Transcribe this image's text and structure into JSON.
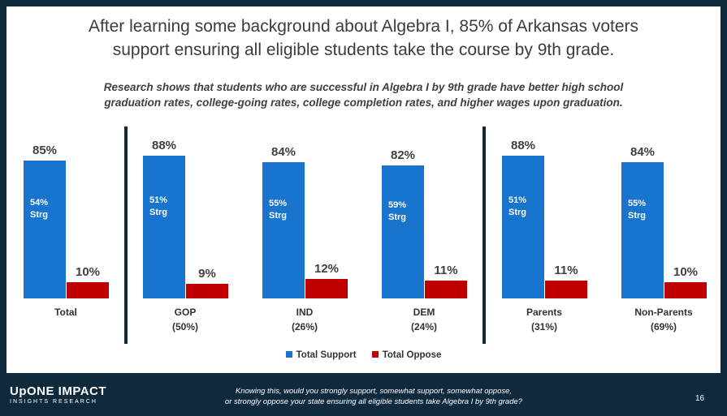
{
  "slide": {
    "title_line1": "After learning some background about Algebra I, 85% of Arkansas voters",
    "title_line2": "support ensuring all eligible students take the course by 9th grade.",
    "subtitle_line1": "Research shows that students who are successful in Algebra I by 9th grade have better high school",
    "subtitle_line2": "graduation rates, college-going rates, college completion rates, and higher wages upon graduation."
  },
  "chart_data": {
    "type": "bar",
    "categories": [
      "Total",
      "GOP",
      "IND",
      "DEM",
      "Parents",
      "Non-Parents"
    ],
    "category_sublabels": [
      "",
      "(50%)",
      "(26%)",
      "(24%)",
      "(31%)",
      "(69%)"
    ],
    "series": [
      {
        "name": "Total Support",
        "values": [
          85,
          88,
          84,
          82,
          88,
          84
        ],
        "labels": [
          "85%",
          "88%",
          "84%",
          "82%",
          "88%",
          "84%"
        ]
      },
      {
        "name": "Total Oppose",
        "values": [
          10,
          9,
          12,
          11,
          11,
          10
        ],
        "labels": [
          "10%",
          "9%",
          "12%",
          "11%",
          "11%",
          "10%"
        ]
      }
    ],
    "strong_support_labels": [
      "54%",
      "51%",
      "55%",
      "59%",
      "51%",
      "55%"
    ],
    "strong_text": "Strg",
    "ylim": [
      0,
      100
    ],
    "colors": {
      "support": "#1874cd",
      "oppose": "#c00000"
    },
    "legend_position": "bottom-center"
  },
  "legend": {
    "support_label": "Total Support",
    "oppose_label": "Total Oppose"
  },
  "footer": {
    "logo_main": "UpONE IMPACT",
    "logo_sub": "INSIGHTS RESEARCH",
    "question_line1": "Knowing this, would you strongly support, somewhat support, somewhat oppose,",
    "question_line2": "or strongly oppose your state ensuring all eligible students take Algebra I by 9th grade?",
    "page_number": "16"
  }
}
